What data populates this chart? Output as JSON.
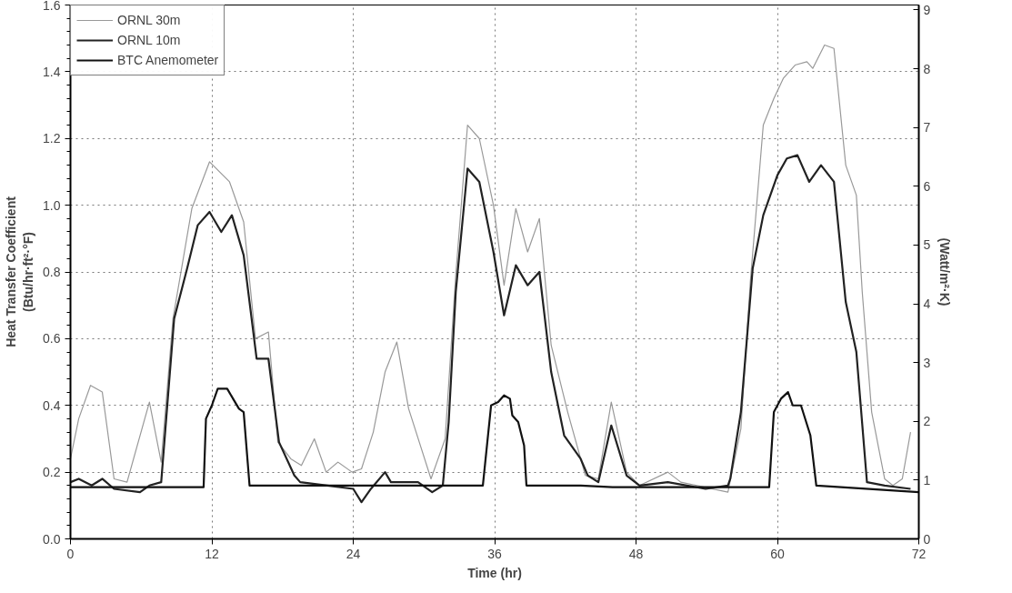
{
  "chart_data": {
    "type": "line",
    "xlabel": "Time (hr)",
    "ylabel": "Heat Transfer Coefficient\n(Btu/hr·ft²·°F)",
    "y2label": "(Watt/m²·K)",
    "xlim": [
      0,
      72
    ],
    "xticks": [
      0,
      12,
      24,
      36,
      48,
      60,
      72
    ],
    "ylim": [
      0,
      1.6
    ],
    "yticks": [
      {
        "value": 0,
        "label": "0.0"
      },
      0.2,
      0.4,
      0.6,
      0.8,
      {
        "value": 1,
        "label": "1.0"
      },
      1.2,
      1.4,
      1.6
    ],
    "y2lim": [
      0,
      9.085
    ],
    "y2ticks": [
      0,
      1,
      2,
      3,
      4,
      5,
      6,
      7,
      8,
      9
    ],
    "grid": true,
    "legend": "top left",
    "line_style": "solid",
    "marker": "none",
    "series": [
      {
        "name": "ORNL 30m",
        "color": "#999999",
        "x": [
          0,
          0.7,
          1.7,
          2.7,
          3.7,
          4.8,
          6.7,
          7.7,
          8.7,
          10.3,
          11.8,
          13.5,
          14.7,
          15.7,
          16.8,
          17.6,
          18.7,
          19.6,
          20.7,
          21.7,
          22.7,
          23.9,
          24.7,
          25.7,
          26.7,
          27.7,
          28.7,
          30.6,
          31.8,
          32.7,
          33.7,
          34.7,
          35.9,
          36.8,
          37.8,
          38.8,
          39.8,
          40.8,
          42.2,
          43.7,
          44.8,
          45.9,
          47.2,
          48.3,
          50.7,
          51.8,
          55.8,
          56.9,
          57.7,
          58.8,
          59.7,
          60.5,
          61.5,
          62.5,
          63.0,
          64.0,
          64.8,
          65.8,
          66.7,
          67.2,
          68.0,
          69.1,
          69.8,
          70.6,
          71.3
        ],
        "values": [
          0.24,
          0.36,
          0.46,
          0.44,
          0.18,
          0.17,
          0.41,
          0.23,
          0.66,
          0.99,
          1.13,
          1.07,
          0.95,
          0.6,
          0.62,
          0.29,
          0.24,
          0.22,
          0.3,
          0.2,
          0.23,
          0.2,
          0.21,
          0.32,
          0.5,
          0.59,
          0.39,
          0.18,
          0.3,
          0.79,
          1.24,
          1.2,
          1.0,
          0.76,
          0.99,
          0.86,
          0.96,
          0.58,
          0.38,
          0.19,
          0.18,
          0.41,
          0.2,
          0.16,
          0.2,
          0.17,
          0.14,
          0.33,
          0.77,
          1.24,
          1.32,
          1.38,
          1.42,
          1.43,
          1.41,
          1.48,
          1.47,
          1.12,
          1.03,
          0.74,
          0.38,
          0.18,
          0.16,
          0.18,
          0.32
        ]
      },
      {
        "name": "ORNL 10m",
        "color": "#222222",
        "x": [
          0,
          0.7,
          1.8,
          2.7,
          3.7,
          5.9,
          6.7,
          7.7,
          8.8,
          9.9,
          10.8,
          11.8,
          12.8,
          13.7,
          14.7,
          15.8,
          16.8,
          17.7,
          19.0,
          19.5,
          21.8,
          24.0,
          24.7,
          25.5,
          26.7,
          27.2,
          29.5,
          30.7,
          31.6,
          32.1,
          32.7,
          33.7,
          34.7,
          35.9,
          36.8,
          37.8,
          38.8,
          39.8,
          40.8,
          41.9,
          43.3,
          43.9,
          44.8,
          45.9,
          47.2,
          48.3,
          50.7,
          53.9,
          55.8,
          56.0,
          56.9,
          57.9,
          58.8,
          60.0,
          60.8,
          61.7,
          62.7,
          63.7,
          64.8,
          65.8,
          66.7,
          67.6,
          69.1,
          71.3
        ],
        "values": [
          0.17,
          0.18,
          0.16,
          0.18,
          0.15,
          0.14,
          0.16,
          0.17,
          0.66,
          0.81,
          0.94,
          0.98,
          0.92,
          0.97,
          0.85,
          0.54,
          0.54,
          0.29,
          0.19,
          0.17,
          0.16,
          0.15,
          0.11,
          0.15,
          0.2,
          0.17,
          0.17,
          0.14,
          0.16,
          0.35,
          0.74,
          1.11,
          1.07,
          0.86,
          0.67,
          0.82,
          0.76,
          0.8,
          0.5,
          0.31,
          0.24,
          0.19,
          0.17,
          0.34,
          0.19,
          0.16,
          0.17,
          0.15,
          0.16,
          0.18,
          0.38,
          0.81,
          0.97,
          1.09,
          1.14,
          1.15,
          1.07,
          1.12,
          1.07,
          0.71,
          0.56,
          0.17,
          0.16,
          0.15
        ]
      },
      {
        "name": "BTC Anemometer",
        "color": "#111111",
        "x": [
          0,
          11.3,
          11.5,
          12.0,
          12.5,
          13.3,
          14.3,
          14.7,
          15.2,
          24.0,
          35.0,
          35.7,
          36.3,
          36.8,
          37.3,
          37.5,
          38.0,
          38.5,
          38.7,
          43.3,
          46.0,
          59.3,
          59.7,
          60.3,
          60.9,
          61.3,
          62.0,
          62.8,
          63.3,
          72.0
        ],
        "values": [
          0.155,
          0.155,
          0.36,
          0.4,
          0.45,
          0.45,
          0.39,
          0.38,
          0.16,
          0.16,
          0.16,
          0.4,
          0.41,
          0.43,
          0.42,
          0.37,
          0.35,
          0.28,
          0.16,
          0.16,
          0.155,
          0.155,
          0.38,
          0.42,
          0.44,
          0.4,
          0.4,
          0.31,
          0.16,
          0.14
        ]
      }
    ]
  }
}
